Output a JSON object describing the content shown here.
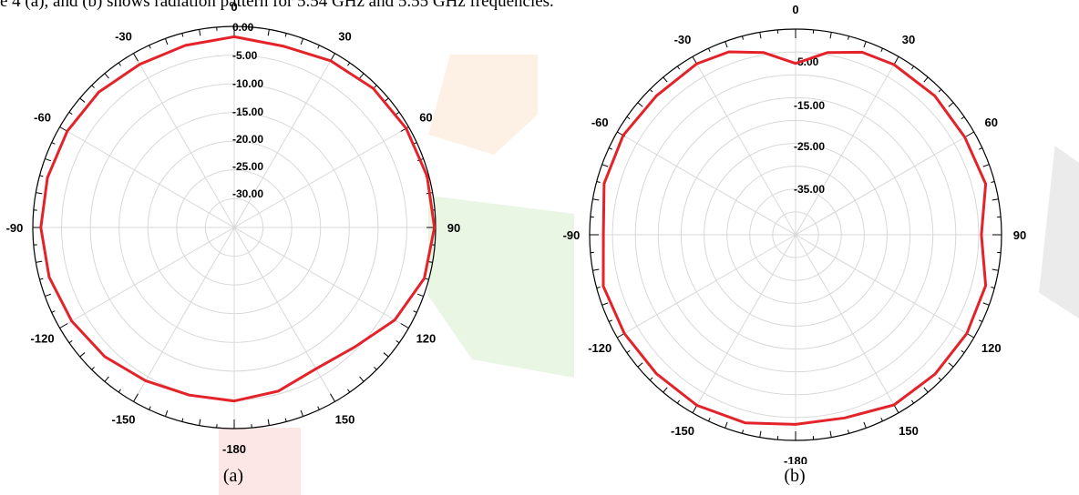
{
  "caption": "e 4 (a), and  (b) shows radiation pattern for 5.54 GHz and 5.55 GHz frequencies.",
  "colors": {
    "trace": "#e3222a",
    "grid": "#d8d8d8",
    "rim": "#000000"
  },
  "chart_data": [
    {
      "type": "polar-line",
      "panel_label": "(a)",
      "angle_ticks": [
        "0",
        "30",
        "60",
        "90",
        "120",
        "150",
        "-180",
        "-150",
        "-120",
        "-90",
        "-60",
        "-30"
      ],
      "radial_range": [
        -35,
        0
      ],
      "radial_tick_labels": [
        "0.00",
        "-5.00",
        "-10.00",
        "-15.00",
        "-20.00",
        "-25.00",
        "-30.00"
      ],
      "grid": true,
      "series": [
        {
          "theta": [
            0,
            15,
            30,
            45,
            60,
            75,
            90,
            105,
            120,
            135,
            150,
            165,
            180,
            195,
            210,
            225,
            240,
            255,
            270,
            285,
            300,
            315,
            330,
            345
          ],
          "r": [
            -1.8,
            -2.3,
            -1.5,
            -0.8,
            -0.5,
            -0.3,
            -0.2,
            -0.8,
            -2.8,
            -5.5,
            -6.6,
            -5.5,
            -4.8,
            -4.8,
            -4.2,
            -3.2,
            -2.4,
            -1.7,
            -1.4,
            -1.4,
            -1.5,
            -1.7,
            -2.2,
            -2.2
          ]
        }
      ]
    },
    {
      "type": "polar-line",
      "panel_label": "(b)",
      "angle_ticks": [
        "0",
        "30",
        "60",
        "90",
        "120",
        "150",
        "-180",
        "-150",
        "-120",
        "-90",
        "-60",
        "-30"
      ],
      "radial_range": [
        -45,
        0
      ],
      "radial_tick_labels": [
        "-5.00",
        "-15.00",
        "-25.00",
        "-35.00"
      ],
      "grid": true,
      "series": [
        {
          "theta": [
            0,
            10,
            20,
            30,
            45,
            60,
            75,
            90,
            105,
            120,
            135,
            150,
            165,
            180,
            195,
            210,
            225,
            240,
            255,
            270,
            285,
            300,
            315,
            330,
            340,
            350
          ],
          "r": [
            -7.5,
            -4.5,
            -2.5,
            -2.0,
            -2.0,
            -2.3,
            -2.0,
            -4.4,
            -2.0,
            -1.8,
            -1.9,
            -2.0,
            -3.5,
            -3.5,
            -2.4,
            -1.9,
            -2.0,
            -1.8,
            -1.5,
            -3.0,
            -1.7,
            -1.5,
            -2.0,
            -1.8,
            -2.4,
            -4.5
          ]
        }
      ]
    }
  ]
}
